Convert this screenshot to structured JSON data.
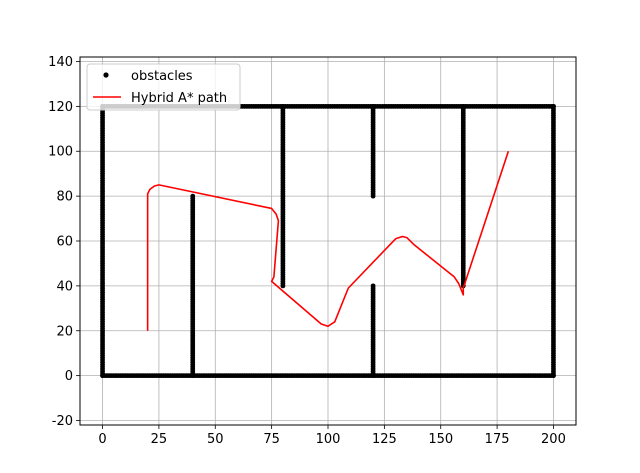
{
  "chart_data": {
    "type": "line",
    "title": "",
    "xlabel": "",
    "ylabel": "",
    "xlim": [
      -10,
      210
    ],
    "ylim": [
      -22,
      142
    ],
    "xticks": [
      0,
      25,
      50,
      75,
      100,
      125,
      150,
      175,
      200
    ],
    "yticks": [
      -20,
      0,
      20,
      40,
      60,
      80,
      100,
      120,
      140
    ],
    "grid": true,
    "legend_position": "top-left",
    "colors": {
      "obstacles": "#000000",
      "path": "#ff0000",
      "grid": "#b0b0b0"
    },
    "series": [
      {
        "name": "obstacles",
        "kind": "scatter-segments",
        "segments": [
          [
            [
              0,
              0
            ],
            [
              200,
              0
            ]
          ],
          [
            [
              0,
              0
            ],
            [
              0,
              120
            ]
          ],
          [
            [
              0,
              120
            ],
            [
              200,
              120
            ]
          ],
          [
            [
              200,
              0
            ],
            [
              200,
              120
            ]
          ],
          [
            [
              40,
              0
            ],
            [
              40,
              80
            ]
          ],
          [
            [
              80,
              40
            ],
            [
              80,
              120
            ]
          ],
          [
            [
              120,
              80
            ],
            [
              120,
              120
            ]
          ],
          [
            [
              120,
              0
            ],
            [
              120,
              40
            ]
          ],
          [
            [
              160,
              40
            ],
            [
              160,
              120
            ]
          ]
        ]
      },
      {
        "name": "Hybrid A* path",
        "kind": "line",
        "points": [
          [
            20,
            20
          ],
          [
            20,
            81
          ],
          [
            21,
            83
          ],
          [
            23,
            84.5
          ],
          [
            25,
            85
          ],
          [
            75,
            74.5
          ],
          [
            77,
            72
          ],
          [
            78,
            69
          ],
          [
            76,
            44
          ],
          [
            75,
            42
          ],
          [
            97,
            23
          ],
          [
            100,
            22
          ],
          [
            103,
            24
          ],
          [
            109,
            39
          ],
          [
            130,
            61
          ],
          [
            133,
            62
          ],
          [
            135,
            61.5
          ],
          [
            138,
            58.5
          ],
          [
            156,
            44
          ],
          [
            158,
            41
          ],
          [
            160,
            36
          ],
          [
            160,
            39
          ],
          [
            180,
            100
          ]
        ]
      }
    ]
  }
}
